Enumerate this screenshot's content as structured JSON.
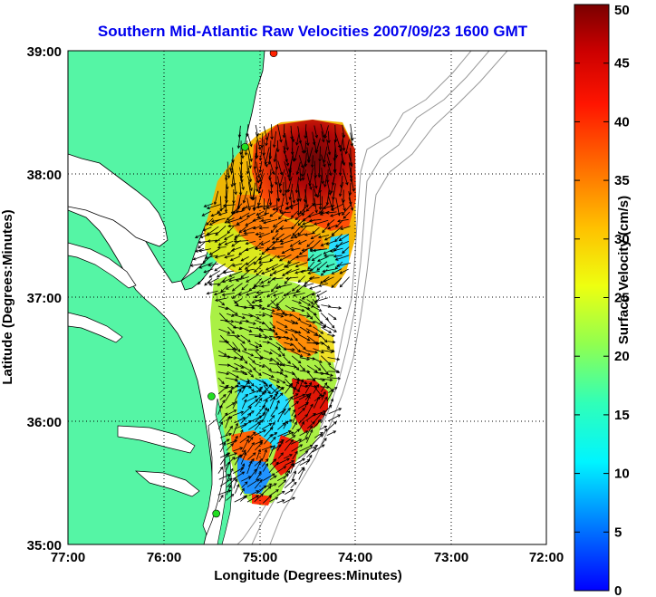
{
  "title": "Southern Mid-Atlantic Raw Velocities 2007/09/23 1600 GMT",
  "x_axis": {
    "label": "Longitude (Degrees:Minutes)",
    "ticks": [
      "77:00",
      "76:00",
      "75:00",
      "74:00",
      "73:00",
      "72:00"
    ],
    "range": [
      -77,
      -72
    ]
  },
  "y_axis": {
    "label": "Latitude (Degrees:Minutes)",
    "ticks": [
      "39:00",
      "38:00",
      "37:00",
      "36:00",
      "35:00"
    ],
    "range": [
      35,
      39
    ]
  },
  "colorbar": {
    "label": "Surface Velocity (cm/s)",
    "ticks": [
      "50",
      "45",
      "40",
      "35",
      "30",
      "25",
      "20",
      "15",
      "10",
      "5",
      "0"
    ],
    "range": [
      0,
      50
    ]
  },
  "colors": {
    "land": "#55f5a5",
    "ocean": "#ffffff",
    "title": "#0000ee",
    "coast_line": "#000000",
    "bathymetry": "#999999",
    "station_green": "#22dd22",
    "station_red": "#ff2200"
  },
  "grid": "dotted",
  "stations": [
    {
      "color": "red",
      "lon": -74.85,
      "lat": 38.98
    },
    {
      "color": "green",
      "lon": -75.15,
      "lat": 38.22
    },
    {
      "color": "green",
      "lon": -75.5,
      "lat": 36.2
    },
    {
      "color": "green",
      "lon": -75.45,
      "lat": 35.25
    }
  ]
}
